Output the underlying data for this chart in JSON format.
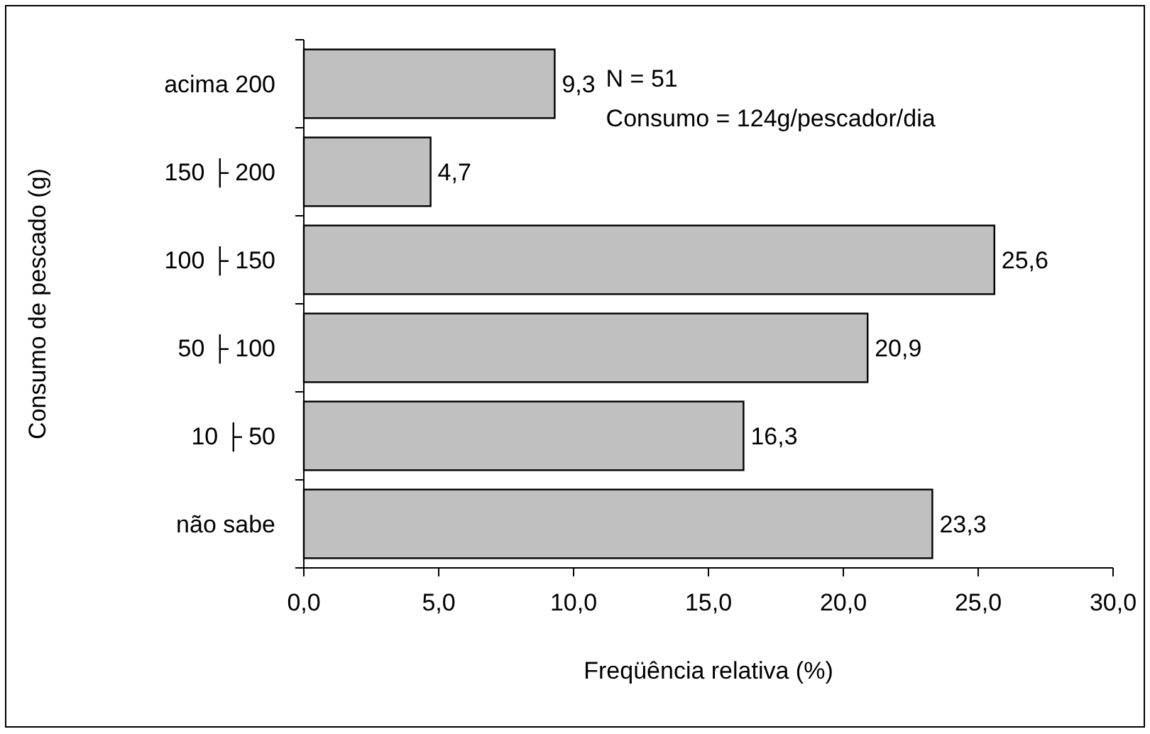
{
  "chart_data": {
    "type": "bar",
    "orientation": "horizontal",
    "xlabel": "Freqüência relativa (%)",
    "ylabel": "Consumo de pescado (g)",
    "categories": [
      "acima 200",
      "150 ├ 200",
      "100 ├ 150",
      "50 ├ 100",
      "10 ├ 50",
      "não sabe"
    ],
    "values": [
      9.3,
      4.7,
      25.6,
      20.9,
      16.3,
      23.3
    ],
    "value_labels": [
      "9,3",
      "4,7",
      "25,6",
      "20,9",
      "16,3",
      "23,3"
    ],
    "color": "#c0c0c0",
    "xlim": [
      0,
      30
    ],
    "xticks": [
      {
        "value": 0,
        "label": "0,0"
      },
      {
        "value": 5,
        "label": "5,0"
      },
      {
        "value": 10,
        "label": "10,0"
      },
      {
        "value": 15,
        "label": "15,0"
      },
      {
        "value": 20,
        "label": "20,0"
      },
      {
        "value": 25,
        "label": "25,0"
      },
      {
        "value": 30,
        "label": "30,0"
      }
    ],
    "annotations": [
      "N = 51",
      "Consumo = 124g/pescador/dia"
    ],
    "grid": false
  }
}
